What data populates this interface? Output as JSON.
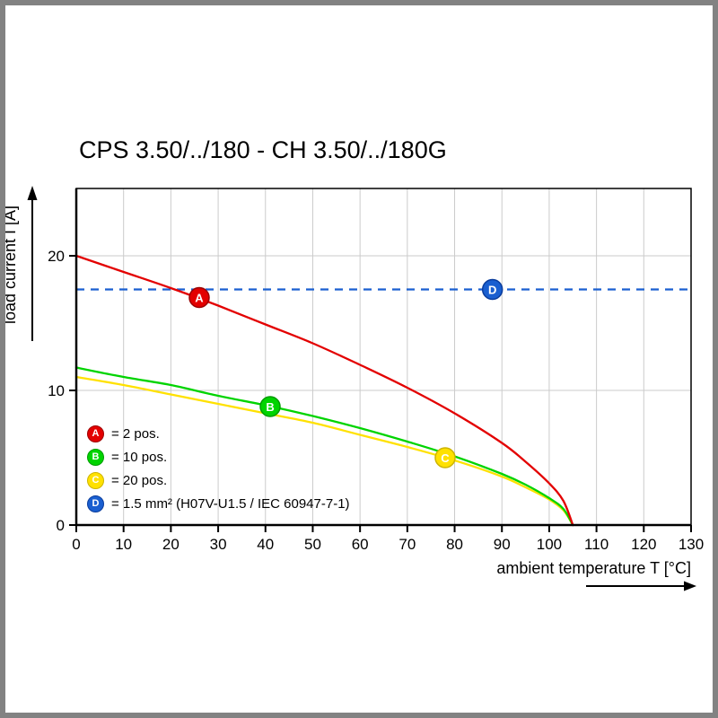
{
  "chart_data": {
    "type": "line",
    "title": "CPS 3.50/../180 - CH 3.50/../180G",
    "xlabel": "ambient temperature T [°C]",
    "ylabel": "load current I [A]",
    "xlim": [
      0,
      130
    ],
    "ylim": [
      0,
      25
    ],
    "x_ticks": [
      0,
      10,
      20,
      30,
      40,
      50,
      60,
      70,
      80,
      90,
      100,
      110,
      120,
      130
    ],
    "y_ticks": [
      0,
      10,
      20
    ],
    "grid": true,
    "colors": {
      "red": "#e30000",
      "green": "#00d400",
      "yellow": "#ffe100",
      "blue": "#1a5fd0",
      "gridline": "#cbcbcb",
      "axis": "#000000"
    },
    "series": [
      {
        "name": "A",
        "label": "= 2 pos.",
        "color": "#e30000",
        "type": "curve",
        "points": [
          [
            0,
            20
          ],
          [
            10,
            18.8
          ],
          [
            20,
            17.6
          ],
          [
            30,
            16.3
          ],
          [
            40,
            14.9
          ],
          [
            50,
            13.5
          ],
          [
            60,
            11.9
          ],
          [
            70,
            10.2
          ],
          [
            80,
            8.3
          ],
          [
            90,
            6.1
          ],
          [
            95,
            4.7
          ],
          [
            100,
            3.1
          ],
          [
            103,
            1.8
          ],
          [
            105,
            0
          ]
        ]
      },
      {
        "name": "B",
        "label": "= 10 pos.",
        "color": "#00d400",
        "type": "curve",
        "points": [
          [
            0,
            11.7
          ],
          [
            10,
            11.0
          ],
          [
            20,
            10.4
          ],
          [
            30,
            9.6
          ],
          [
            40,
            8.9
          ],
          [
            50,
            8.1
          ],
          [
            60,
            7.2
          ],
          [
            70,
            6.2
          ],
          [
            80,
            5.1
          ],
          [
            90,
            3.8
          ],
          [
            95,
            3.0
          ],
          [
            100,
            2.0
          ],
          [
            103,
            1.2
          ],
          [
            105,
            0
          ]
        ]
      },
      {
        "name": "C",
        "label": "= 20 pos.",
        "color": "#ffe100",
        "type": "curve",
        "points": [
          [
            0,
            11.0
          ],
          [
            10,
            10.4
          ],
          [
            20,
            9.7
          ],
          [
            30,
            9.0
          ],
          [
            40,
            8.3
          ],
          [
            50,
            7.6
          ],
          [
            60,
            6.7
          ],
          [
            70,
            5.8
          ],
          [
            80,
            4.8
          ],
          [
            90,
            3.6
          ],
          [
            95,
            2.8
          ],
          [
            100,
            1.9
          ],
          [
            103,
            1.1
          ],
          [
            105,
            0
          ]
        ]
      },
      {
        "name": "D",
        "label": "= 1.5 mm² (H07V-U1.5 / IEC 60947-7-1)",
        "color": "#1a5fd0",
        "type": "hline",
        "y": 17.5
      }
    ],
    "markers": [
      {
        "letter": "A",
        "x": 26,
        "y": 16.9,
        "color": "#e30000",
        "ring": "#9c0000"
      },
      {
        "letter": "B",
        "x": 41,
        "y": 8.8,
        "color": "#00d400",
        "ring": "#009c00"
      },
      {
        "letter": "C",
        "x": 78,
        "y": 5.0,
        "color": "#ffe100",
        "ring": "#cdb400"
      },
      {
        "letter": "D",
        "x": 88,
        "y": 17.5,
        "color": "#1a5fd0",
        "ring": "#0a3c9c"
      }
    ],
    "legend": {
      "position": "bottom-left",
      "items": [
        {
          "letter": "A",
          "label": "= 2 pos.",
          "color": "#e30000",
          "ring": "#9c0000"
        },
        {
          "letter": "B",
          "label": "= 10 pos.",
          "color": "#00d400",
          "ring": "#009c00"
        },
        {
          "letter": "C",
          "label": "= 20 pos.",
          "color": "#ffe100",
          "ring": "#cdb400"
        },
        {
          "letter": "D",
          "label": "= 1.5 mm² (H07V-U1.5 / IEC 60947-7-1)",
          "color": "#1a5fd0",
          "ring": "#0a3c9c"
        }
      ]
    }
  }
}
